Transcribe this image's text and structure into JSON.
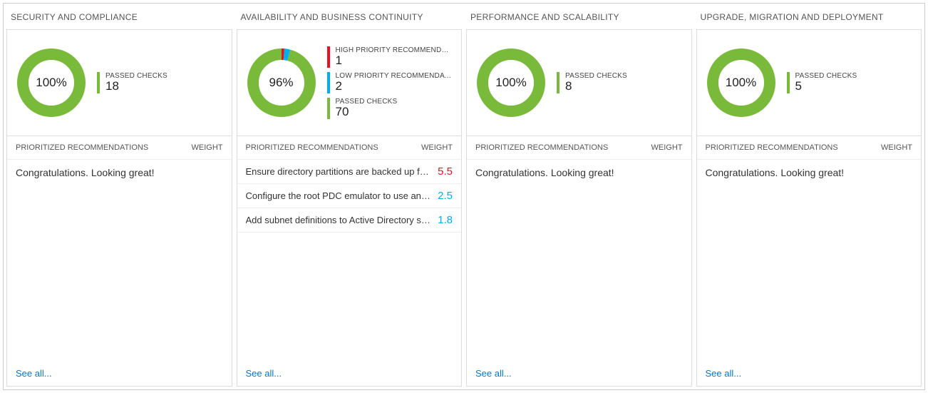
{
  "colors": {
    "green": "#7aba3a",
    "red": "#e81123",
    "blue": "#00b0f0",
    "link": "#0078d4",
    "grid": "#dddddd",
    "text": "#333333",
    "muted": "#555555"
  },
  "columns": [
    {
      "title": "SECURITY AND COMPLIANCE",
      "donut": {
        "percent_label": "100%",
        "segments": [
          {
            "color": "#7aba3a",
            "fraction": 1.0
          }
        ]
      },
      "stats": [
        {
          "label": "PASSED CHECKS",
          "value": "18",
          "bar_color": "#7aba3a"
        }
      ],
      "recommendations_title": "PRIORITIZED RECOMMENDATIONS",
      "weight_label": "WEIGHT",
      "message": "Congratulations. Looking great!",
      "rows": [],
      "see_all": "See all..."
    },
    {
      "title": "AVAILABILITY AND BUSINESS CONTINUITY",
      "donut": {
        "percent_label": "96%",
        "segments": [
          {
            "color": "#e81123",
            "fraction": 0.0137
          },
          {
            "color": "#00b0f0",
            "fraction": 0.0274
          },
          {
            "color": "#7aba3a",
            "fraction": 0.9589
          }
        ]
      },
      "stats": [
        {
          "label": "HIGH PRIORITY RECOMMENDATI...",
          "value": "1",
          "bar_color": "#e81123"
        },
        {
          "label": "LOW PRIORITY RECOMMENDATIO...",
          "value": "2",
          "bar_color": "#00b0f0"
        },
        {
          "label": "PASSED CHECKS",
          "value": "70",
          "bar_color": "#7aba3a"
        }
      ],
      "recommendations_title": "PRIORITIZED RECOMMENDATIONS",
      "weight_label": "WEIGHT",
      "message": null,
      "rows": [
        {
          "text": "Ensure directory partitions are backed up frequently.",
          "weight": "5.5",
          "weight_color": "#e81123"
        },
        {
          "text": "Configure the root PDC emulator to use an authorita...",
          "weight": "2.5",
          "weight_color": "#00b0f0"
        },
        {
          "text": "Add subnet definitions to Active Directory sites.",
          "weight": "1.8",
          "weight_color": "#00b0f0"
        }
      ],
      "see_all": "See all..."
    },
    {
      "title": "PERFORMANCE AND SCALABILITY",
      "donut": {
        "percent_label": "100%",
        "segments": [
          {
            "color": "#7aba3a",
            "fraction": 1.0
          }
        ]
      },
      "stats": [
        {
          "label": "PASSED CHECKS",
          "value": "8",
          "bar_color": "#7aba3a"
        }
      ],
      "recommendations_title": "PRIORITIZED RECOMMENDATIONS",
      "weight_label": "WEIGHT",
      "message": "Congratulations. Looking great!",
      "rows": [],
      "see_all": "See all..."
    },
    {
      "title": "UPGRADE, MIGRATION AND DEPLOYMENT",
      "donut": {
        "percent_label": "100%",
        "segments": [
          {
            "color": "#7aba3a",
            "fraction": 1.0
          }
        ]
      },
      "stats": [
        {
          "label": "PASSED CHECKS",
          "value": "5",
          "bar_color": "#7aba3a"
        }
      ],
      "recommendations_title": "PRIORITIZED RECOMMENDATIONS",
      "weight_label": "WEIGHT",
      "message": "Congratulations. Looking great!",
      "rows": [],
      "see_all": "See all..."
    }
  ]
}
